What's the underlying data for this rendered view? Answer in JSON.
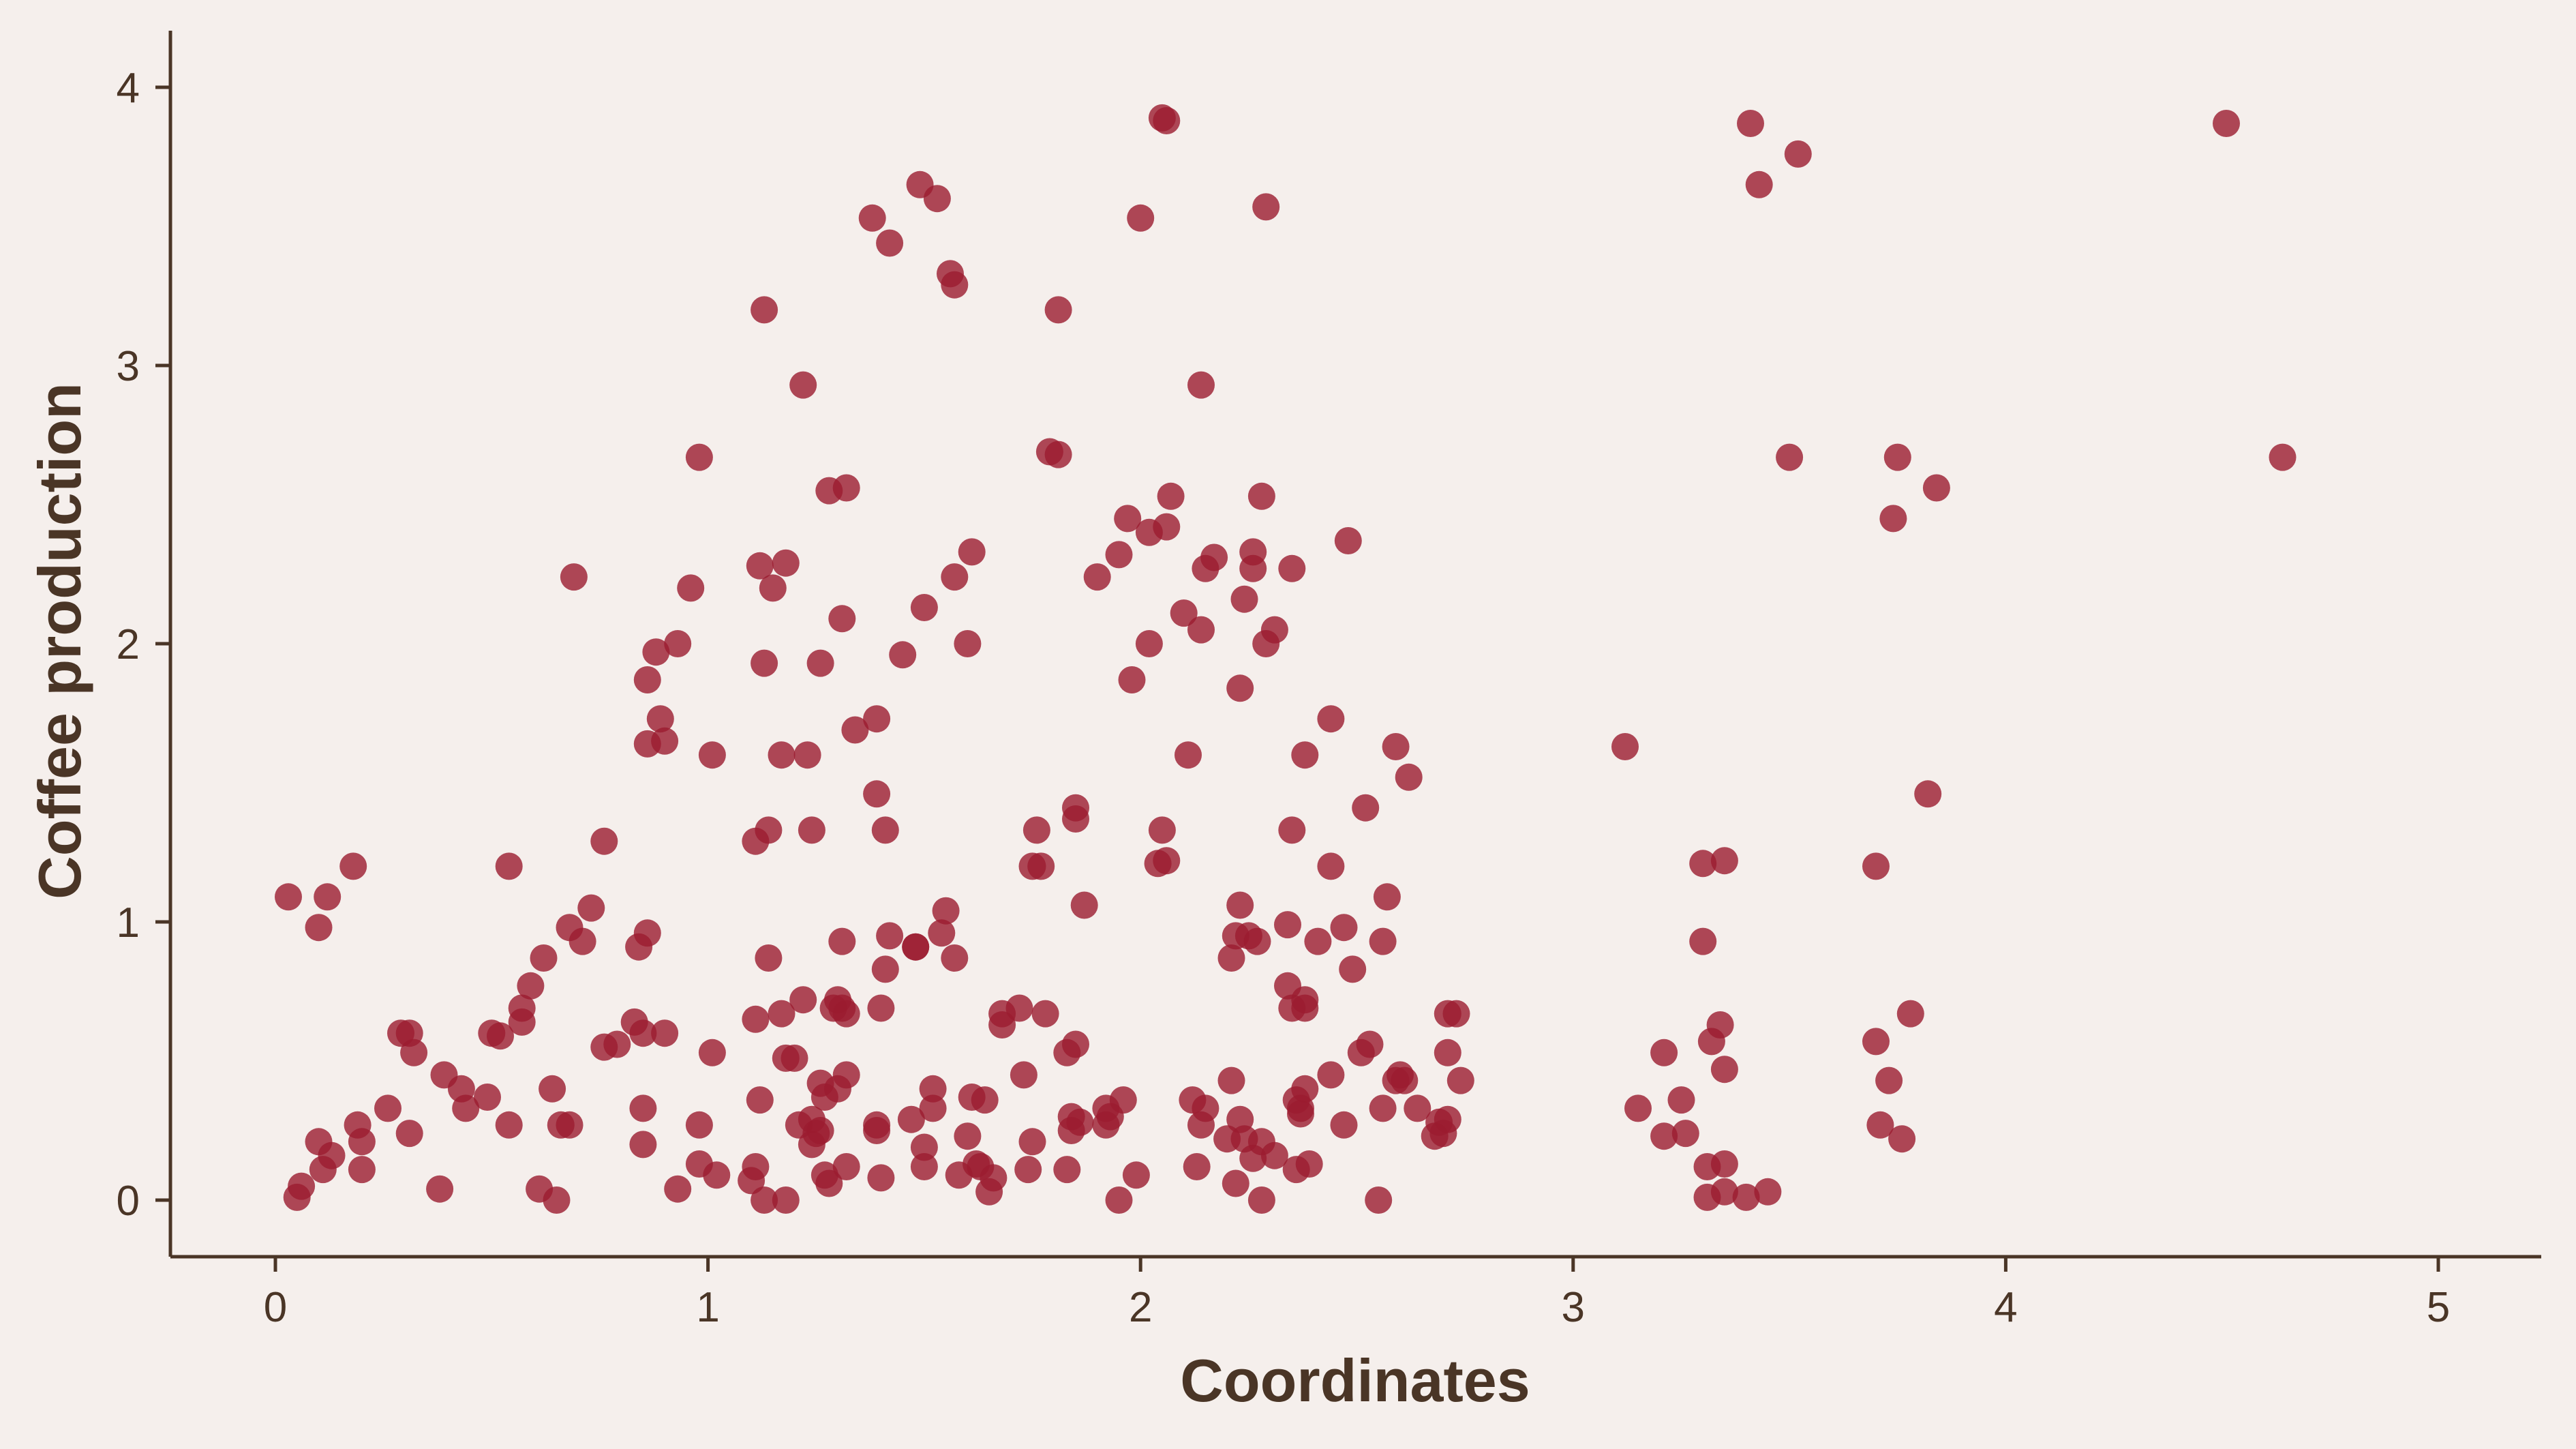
{
  "chart_data": {
    "type": "scatter",
    "title": "",
    "xlabel": "Coordinates",
    "ylabel": "Coffee production",
    "xlim": [
      -0.25,
      5.25
    ],
    "ylim": [
      -0.2,
      4.2
    ],
    "xticks": [
      "0",
      "1",
      "2",
      "3",
      "4",
      "5"
    ],
    "yticks": [
      "0",
      "1",
      "2",
      "3",
      "4"
    ],
    "grid": false,
    "legend": "none",
    "color": "#9b1b30",
    "background": "#f5efec",
    "axis_color": "#4a3526",
    "points": [
      [
        0.03,
        1.09
      ],
      [
        0.1,
        0.98
      ],
      [
        0.12,
        1.09
      ],
      [
        0.18,
        1.2
      ],
      [
        0.05,
        0.01
      ],
      [
        0.06,
        0.05
      ],
      [
        0.1,
        0.21
      ],
      [
        0.11,
        0.11
      ],
      [
        0.13,
        0.16
      ],
      [
        0.19,
        0.27
      ],
      [
        0.2,
        0.21
      ],
      [
        0.2,
        0.11
      ],
      [
        0.26,
        0.33
      ],
      [
        0.29,
        0.6
      ],
      [
        0.31,
        0.6
      ],
      [
        0.31,
        0.24
      ],
      [
        0.32,
        0.53
      ],
      [
        0.38,
        0.04
      ],
      [
        0.39,
        0.45
      ],
      [
        0.43,
        0.4
      ],
      [
        0.44,
        0.33
      ],
      [
        0.49,
        0.37
      ],
      [
        0.5,
        0.6
      ],
      [
        0.52,
        0.59
      ],
      [
        0.54,
        0.27
      ],
      [
        0.54,
        1.2
      ],
      [
        0.57,
        0.69
      ],
      [
        0.57,
        0.64
      ],
      [
        0.59,
        0.77
      ],
      [
        0.61,
        0.04
      ],
      [
        0.62,
        0.87
      ],
      [
        0.64,
        0.4
      ],
      [
        0.65,
        0.0
      ],
      [
        0.66,
        0.27
      ],
      [
        0.68,
        0.27
      ],
      [
        0.69,
        2.24
      ],
      [
        0.68,
        0.98
      ],
      [
        0.71,
        0.93
      ],
      [
        0.73,
        1.05
      ],
      [
        0.76,
        1.29
      ],
      [
        0.76,
        0.55
      ],
      [
        0.79,
        0.56
      ],
      [
        0.83,
        0.64
      ],
      [
        0.84,
        0.91
      ],
      [
        0.86,
        0.96
      ],
      [
        0.85,
        0.6
      ],
      [
        0.85,
        0.33
      ],
      [
        0.85,
        0.2
      ],
      [
        0.86,
        1.87
      ],
      [
        0.86,
        1.64
      ],
      [
        0.88,
        1.97
      ],
      [
        0.89,
        1.73
      ],
      [
        0.9,
        1.65
      ],
      [
        0.9,
        0.6
      ],
      [
        0.93,
        2.0
      ],
      [
        0.93,
        0.04
      ],
      [
        0.96,
        2.2
      ],
      [
        0.98,
        2.67
      ],
      [
        0.98,
        0.27
      ],
      [
        0.98,
        0.13
      ],
      [
        1.01,
        0.53
      ],
      [
        1.01,
        1.6
      ],
      [
        1.02,
        0.09
      ],
      [
        1.1,
        0.07
      ],
      [
        1.11,
        0.65
      ],
      [
        1.11,
        1.29
      ],
      [
        1.11,
        0.12
      ],
      [
        1.12,
        0.36
      ],
      [
        1.12,
        2.28
      ],
      [
        1.13,
        3.2
      ],
      [
        1.13,
        1.93
      ],
      [
        1.13,
        0.0
      ],
      [
        1.14,
        1.33
      ],
      [
        1.14,
        0.87
      ],
      [
        1.15,
        2.2
      ],
      [
        1.17,
        0.67
      ],
      [
        1.17,
        1.6
      ],
      [
        1.18,
        2.29
      ],
      [
        1.18,
        0.0
      ],
      [
        1.18,
        0.51
      ],
      [
        1.2,
        0.51
      ],
      [
        1.21,
        0.27
      ],
      [
        1.22,
        0.72
      ],
      [
        1.22,
        2.93
      ],
      [
        1.23,
        1.6
      ],
      [
        1.24,
        1.33
      ],
      [
        1.24,
        0.2
      ],
      [
        1.24,
        0.29
      ],
      [
        1.25,
        0.24
      ],
      [
        1.26,
        1.93
      ],
      [
        1.26,
        0.42
      ],
      [
        1.26,
        0.25
      ],
      [
        1.27,
        0.09
      ],
      [
        1.27,
        0.37
      ],
      [
        1.28,
        2.55
      ],
      [
        1.28,
        0.06
      ],
      [
        1.29,
        0.69
      ],
      [
        1.3,
        0.72
      ],
      [
        1.3,
        0.4
      ],
      [
        1.31,
        2.09
      ],
      [
        1.31,
        0.93
      ],
      [
        1.31,
        0.69
      ],
      [
        1.32,
        0.12
      ],
      [
        1.32,
        0.67
      ],
      [
        1.32,
        2.56
      ],
      [
        1.32,
        0.45
      ],
      [
        1.34,
        1.69
      ],
      [
        1.38,
        3.53
      ],
      [
        1.39,
        1.73
      ],
      [
        1.39,
        1.46
      ],
      [
        1.39,
        0.27
      ],
      [
        1.39,
        0.25
      ],
      [
        1.4,
        0.08
      ],
      [
        1.4,
        0.69
      ],
      [
        1.41,
        1.33
      ],
      [
        1.41,
        0.83
      ],
      [
        1.42,
        3.44
      ],
      [
        1.42,
        0.95
      ],
      [
        1.45,
        1.96
      ],
      [
        1.47,
        0.29
      ],
      [
        1.48,
        0.91
      ],
      [
        1.48,
        0.91
      ],
      [
        1.49,
        3.65
      ],
      [
        1.5,
        0.12
      ],
      [
        1.5,
        2.13
      ],
      [
        1.5,
        0.19
      ],
      [
        1.52,
        0.4
      ],
      [
        1.52,
        0.33
      ],
      [
        1.53,
        3.6
      ],
      [
        1.54,
        0.96
      ],
      [
        1.55,
        1.04
      ],
      [
        1.56,
        3.33
      ],
      [
        1.57,
        3.29
      ],
      [
        1.57,
        0.87
      ],
      [
        1.57,
        2.24
      ],
      [
        1.58,
        0.09
      ],
      [
        1.6,
        0.23
      ],
      [
        1.6,
        2.0
      ],
      [
        1.61,
        2.33
      ],
      [
        1.61,
        0.37
      ],
      [
        1.62,
        0.13
      ],
      [
        1.63,
        0.12
      ],
      [
        1.64,
        0.36
      ],
      [
        1.65,
        0.03
      ],
      [
        1.66,
        0.08
      ],
      [
        1.68,
        0.63
      ],
      [
        1.68,
        0.67
      ],
      [
        1.72,
        0.69
      ],
      [
        1.73,
        0.45
      ],
      [
        1.74,
        0.11
      ],
      [
        1.75,
        1.2
      ],
      [
        1.75,
        0.21
      ],
      [
        1.76,
        1.33
      ],
      [
        1.77,
        1.2
      ],
      [
        1.78,
        0.67
      ],
      [
        1.79,
        2.69
      ],
      [
        1.81,
        3.2
      ],
      [
        1.81,
        2.68
      ],
      [
        1.83,
        0.11
      ],
      [
        1.83,
        0.53
      ],
      [
        1.84,
        0.3
      ],
      [
        1.84,
        0.25
      ],
      [
        1.85,
        1.37
      ],
      [
        1.85,
        1.41
      ],
      [
        1.85,
        0.56
      ],
      [
        1.86,
        0.28
      ],
      [
        1.87,
        1.06
      ],
      [
        1.9,
        2.24
      ],
      [
        1.92,
        0.33
      ],
      [
        1.92,
        0.27
      ],
      [
        1.93,
        0.3
      ],
      [
        1.95,
        2.32
      ],
      [
        1.95,
        0.0
      ],
      [
        1.96,
        0.36
      ],
      [
        1.97,
        2.45
      ],
      [
        1.98,
        1.87
      ],
      [
        1.99,
        0.09
      ],
      [
        2.0,
        3.53
      ],
      [
        2.02,
        2.4
      ],
      [
        2.02,
        2.0
      ],
      [
        2.04,
        1.21
      ],
      [
        2.05,
        1.33
      ],
      [
        2.05,
        3.89
      ],
      [
        2.06,
        3.88
      ],
      [
        2.06,
        2.42
      ],
      [
        2.06,
        1.22
      ],
      [
        2.07,
        2.53
      ],
      [
        2.1,
        2.11
      ],
      [
        2.11,
        1.6
      ],
      [
        2.12,
        0.36
      ],
      [
        2.13,
        0.12
      ],
      [
        2.14,
        2.93
      ],
      [
        2.14,
        2.05
      ],
      [
        2.14,
        0.27
      ],
      [
        2.15,
        0.33
      ],
      [
        2.15,
        2.27
      ],
      [
        2.17,
        2.31
      ],
      [
        2.2,
        0.22
      ],
      [
        2.21,
        0.87
      ],
      [
        2.21,
        0.43
      ],
      [
        2.22,
        0.95
      ],
      [
        2.22,
        0.06
      ],
      [
        2.23,
        1.06
      ],
      [
        2.23,
        0.29
      ],
      [
        2.23,
        1.84
      ],
      [
        2.24,
        2.16
      ],
      [
        2.24,
        0.22
      ],
      [
        2.25,
        0.95
      ],
      [
        2.26,
        2.33
      ],
      [
        2.26,
        2.27
      ],
      [
        2.26,
        0.15
      ],
      [
        2.27,
        0.93
      ],
      [
        2.28,
        2.53
      ],
      [
        2.28,
        0.21
      ],
      [
        2.28,
        0.0
      ],
      [
        2.29,
        3.57
      ],
      [
        2.29,
        2.0
      ],
      [
        2.31,
        2.05
      ],
      [
        2.31,
        0.16
      ],
      [
        2.34,
        0.99
      ],
      [
        2.34,
        0.77
      ],
      [
        2.35,
        1.33
      ],
      [
        2.35,
        0.69
      ],
      [
        2.35,
        2.27
      ],
      [
        2.36,
        0.36
      ],
      [
        2.36,
        0.11
      ],
      [
        2.37,
        0.33
      ],
      [
        2.37,
        0.31
      ],
      [
        2.38,
        1.6
      ],
      [
        2.38,
        0.72
      ],
      [
        2.38,
        0.69
      ],
      [
        2.38,
        0.4
      ],
      [
        2.39,
        0.13
      ],
      [
        2.41,
        0.93
      ],
      [
        2.44,
        1.2
      ],
      [
        2.44,
        1.73
      ],
      [
        2.44,
        0.45
      ],
      [
        2.47,
        0.98
      ],
      [
        2.47,
        0.27
      ],
      [
        2.48,
        2.37
      ],
      [
        2.49,
        0.83
      ],
      [
        2.51,
        0.53
      ],
      [
        2.52,
        1.41
      ],
      [
        2.53,
        0.56
      ],
      [
        2.55,
        0.0
      ],
      [
        2.56,
        0.93
      ],
      [
        2.56,
        0.33
      ],
      [
        2.57,
        1.09
      ],
      [
        2.59,
        0.43
      ],
      [
        2.59,
        1.63
      ],
      [
        2.6,
        0.45
      ],
      [
        2.61,
        0.43
      ],
      [
        2.62,
        1.52
      ],
      [
        2.64,
        0.33
      ],
      [
        2.68,
        0.23
      ],
      [
        2.69,
        0.28
      ],
      [
        2.7,
        0.24
      ],
      [
        2.71,
        0.29
      ],
      [
        2.71,
        0.67
      ],
      [
        2.71,
        0.53
      ],
      [
        2.73,
        0.67
      ],
      [
        2.74,
        0.43
      ],
      [
        3.12,
        1.63
      ],
      [
        3.15,
        0.33
      ],
      [
        3.21,
        0.53
      ],
      [
        3.21,
        0.23
      ],
      [
        3.25,
        0.36
      ],
      [
        3.26,
        0.24
      ],
      [
        3.3,
        1.21
      ],
      [
        3.3,
        0.93
      ],
      [
        3.31,
        0.12
      ],
      [
        3.31,
        0.01
      ],
      [
        3.32,
        0.57
      ],
      [
        3.34,
        0.63
      ],
      [
        3.35,
        1.22
      ],
      [
        3.35,
        0.47
      ],
      [
        3.35,
        0.13
      ],
      [
        3.35,
        0.03
      ],
      [
        3.4,
        0.01
      ],
      [
        3.41,
        3.87
      ],
      [
        3.43,
        3.65
      ],
      [
        3.45,
        0.03
      ],
      [
        3.5,
        2.67
      ],
      [
        3.52,
        3.76
      ],
      [
        3.7,
        1.2
      ],
      [
        3.7,
        0.57
      ],
      [
        3.71,
        0.27
      ],
      [
        3.73,
        0.43
      ],
      [
        3.74,
        2.45
      ],
      [
        3.75,
        2.67
      ],
      [
        3.76,
        0.22
      ],
      [
        3.78,
        0.67
      ],
      [
        3.82,
        1.46
      ],
      [
        3.84,
        2.56
      ],
      [
        4.51,
        3.87
      ],
      [
        4.64,
        2.67
      ]
    ]
  }
}
